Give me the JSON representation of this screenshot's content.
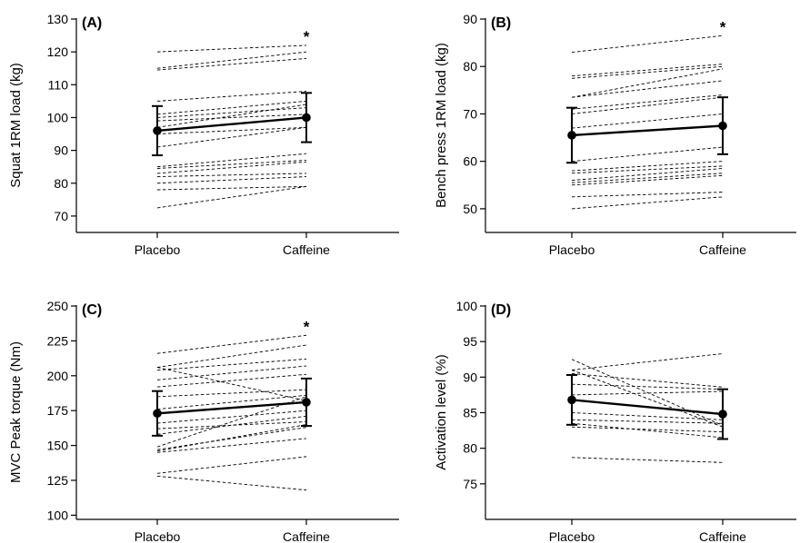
{
  "chart_data": [
    {
      "type": "line",
      "panel_label": "(A)",
      "ylabel": "Squat 1RM load (kg)",
      "categories": [
        "Placebo",
        "Caffeine"
      ],
      "ylim": [
        65,
        130
      ],
      "yticks": [
        70,
        80,
        90,
        100,
        110,
        120,
        130
      ],
      "significance_marker": "*",
      "individuals": [
        [
          120,
          122
        ],
        [
          115,
          120
        ],
        [
          114.5,
          118
        ],
        [
          105,
          108
        ],
        [
          101,
          105
        ],
        [
          100,
          103
        ],
        [
          99,
          101
        ],
        [
          97,
          104
        ],
        [
          96,
          100
        ],
        [
          95,
          97
        ],
        [
          91,
          97
        ],
        [
          85,
          89
        ],
        [
          84.5,
          87
        ],
        [
          83,
          86.5
        ],
        [
          82,
          83
        ],
        [
          80,
          82
        ],
        [
          78,
          79
        ],
        [
          72.5,
          79
        ]
      ],
      "mean": [
        96,
        100
      ],
      "sd": [
        7.5,
        7.5
      ]
    },
    {
      "type": "line",
      "panel_label": "(B)",
      "ylabel": "Bench press 1RM load (kg)",
      "categories": [
        "Placebo",
        "Caffeine"
      ],
      "ylim": [
        45,
        90
      ],
      "yticks": [
        50,
        60,
        70,
        80,
        90
      ],
      "significance_marker": "*",
      "individuals": [
        [
          83,
          86.5
        ],
        [
          78,
          80.5
        ],
        [
          77.5,
          80
        ],
        [
          73.5,
          79.5
        ],
        [
          73.5,
          77
        ],
        [
          71,
          74
        ],
        [
          70,
          73.5
        ],
        [
          67,
          70
        ],
        [
          60,
          63
        ],
        [
          58,
          60
        ],
        [
          57.5,
          59
        ],
        [
          56,
          58.5
        ],
        [
          55.5,
          57.5
        ],
        [
          55,
          57
        ],
        [
          52.5,
          53.5
        ],
        [
          50,
          52.5
        ]
      ],
      "mean": [
        65.5,
        67.5
      ],
      "sd": [
        5.8,
        6.0
      ]
    },
    {
      "type": "line",
      "panel_label": "(C)",
      "ylabel": "MVC Peak torque (Nm)",
      "categories": [
        "Placebo",
        "Caffeine"
      ],
      "ylim": [
        97,
        250
      ],
      "yticks": [
        100,
        125,
        150,
        175,
        200,
        225,
        250
      ],
      "significance_marker": "*",
      "individuals": [
        [
          216,
          229
        ],
        [
          206,
          222
        ],
        [
          204,
          212
        ],
        [
          197,
          207
        ],
        [
          192,
          201
        ],
        [
          185,
          190
        ],
        [
          206,
          182
        ],
        [
          176,
          186
        ],
        [
          166,
          175
        ],
        [
          162,
          167
        ],
        [
          158,
          171
        ],
        [
          149,
          185
        ],
        [
          147,
          163
        ],
        [
          146,
          165
        ],
        [
          145,
          155
        ],
        [
          130,
          142
        ],
        [
          128,
          118
        ]
      ],
      "mean": [
        173,
        181
      ],
      "sd": [
        16,
        17
      ]
    },
    {
      "type": "line",
      "panel_label": "(D)",
      "ylabel": "Activation level (%)",
      "categories": [
        "Placebo",
        "Caffeine"
      ],
      "ylim": [
        70,
        100
      ],
      "yticks": [
        75,
        80,
        85,
        90,
        95,
        100
      ],
      "significance_marker": "",
      "individuals": [
        [
          91,
          93.3
        ],
        [
          90.5,
          88.6
        ],
        [
          89,
          88.3
        ],
        [
          87.5,
          88
        ],
        [
          91,
          83
        ],
        [
          92.5,
          83.2
        ],
        [
          85,
          84
        ],
        [
          84,
          83.5
        ],
        [
          83.5,
          81.5
        ],
        [
          83,
          82.3
        ],
        [
          78.7,
          78
        ]
      ],
      "mean": [
        86.8,
        84.8
      ],
      "sd": [
        3.5,
        3.5
      ]
    }
  ]
}
